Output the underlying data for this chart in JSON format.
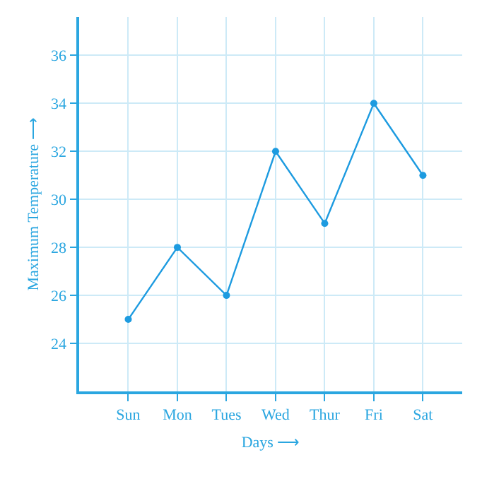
{
  "chart_data": {
    "type": "line",
    "xlabel": "Days ⟶",
    "ylabel": "Maximum Temperature ⟶",
    "categories": [
      "Sun",
      "Mon",
      "Tues",
      "Wed",
      "Thur",
      "Fri",
      "Sat"
    ],
    "series": [
      {
        "color": "#1d9be0",
        "values": [
          25,
          28,
          26,
          32,
          29,
          34,
          31
        ]
      }
    ],
    "ylim": [
      22,
      37.6
    ],
    "yticks": [
      24,
      26,
      28,
      30,
      32,
      34,
      36
    ],
    "grid": true,
    "marker": "circle",
    "line_style": "solid"
  }
}
